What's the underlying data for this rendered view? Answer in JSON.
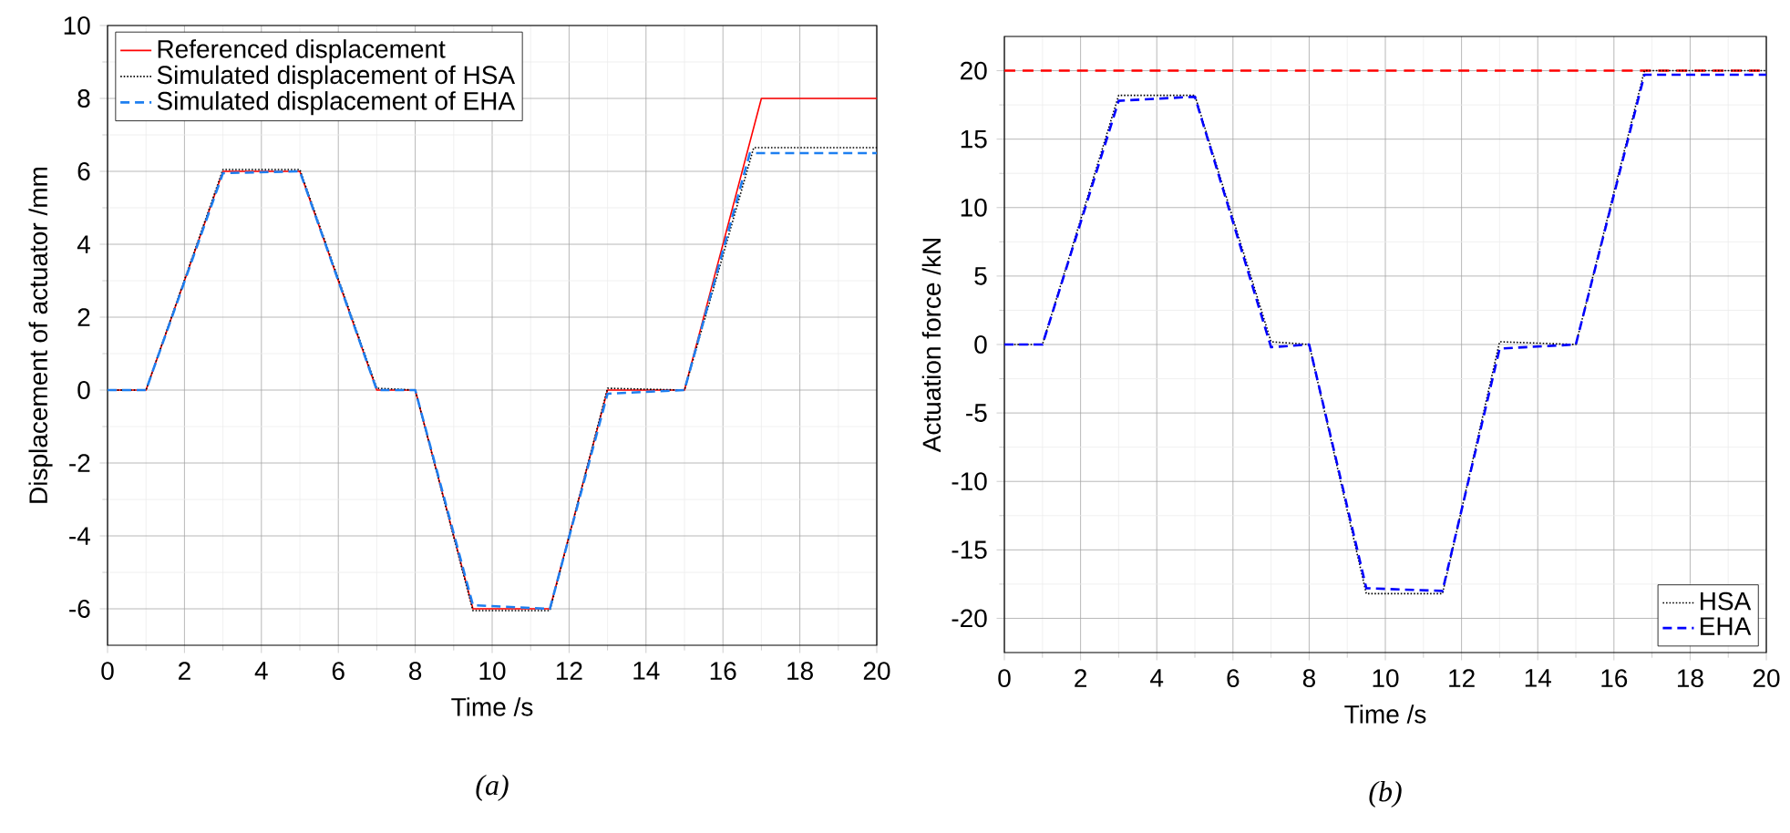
{
  "chart_data": [
    {
      "type": "line",
      "xlabel": "Time /s",
      "ylabel": "Displacement of actuator /mm",
      "xlim": [
        0,
        20
      ],
      "xticks": [
        0,
        2,
        4,
        6,
        8,
        10,
        12,
        14,
        16,
        18,
        20
      ],
      "ylim": [
        -7,
        10
      ],
      "yticks": [
        -6,
        -4,
        -2,
        0,
        2,
        4,
        6,
        8,
        10
      ],
      "grid": true,
      "legend": "top left",
      "annotations": [
        "(a)"
      ],
      "series": [
        {
          "name": "Referenced displacement",
          "color": "#ff0000",
          "line_style": "solid",
          "x": [
            0,
            1,
            3,
            5,
            7,
            8,
            9.5,
            11.5,
            13,
            15,
            17,
            20
          ],
          "values": [
            0,
            0,
            6,
            6,
            0,
            0,
            -6,
            -6,
            0,
            0,
            8,
            8
          ]
        },
        {
          "name": "Simulated displacement of HSA",
          "color": "#000000",
          "line_style": "dotted",
          "x": [
            0,
            1,
            3,
            5,
            7,
            8,
            9.5,
            11.5,
            13,
            15,
            16.8,
            20
          ],
          "values": [
            0,
            0,
            6.05,
            6.05,
            0.05,
            0,
            -6.05,
            -6.05,
            0.05,
            0,
            6.65,
            6.65
          ]
        },
        {
          "name": "Simulated displacement of EHA",
          "color": "#1e7ff0",
          "line_style": "dashed",
          "x": [
            0,
            1,
            3,
            5,
            7,
            8,
            9.5,
            11.5,
            13,
            15,
            16.7,
            20
          ],
          "values": [
            0,
            0,
            5.95,
            6,
            0,
            0,
            -5.9,
            -6,
            -0.1,
            0,
            6.5,
            6.5
          ]
        }
      ]
    },
    {
      "type": "line",
      "xlabel": "Time /s",
      "ylabel": "Actuation force /kN",
      "xlim": [
        0,
        20
      ],
      "xticks": [
        0,
        2,
        4,
        6,
        8,
        10,
        12,
        14,
        16,
        18,
        20
      ],
      "ylim": [
        -22.5,
        22.5
      ],
      "yticks": [
        -20,
        -15,
        -10,
        -5,
        0,
        5,
        10,
        15,
        20
      ],
      "grid": true,
      "legend": "bottom right",
      "annotations": [
        "(b)"
      ],
      "ref_lines": [
        {
          "axis": "y",
          "value": 20,
          "color": "#ff0000",
          "line_style": "dashed"
        }
      ],
      "series": [
        {
          "name": "HSA",
          "color": "#000000",
          "line_style": "dotted",
          "x": [
            0,
            1,
            3,
            5,
            7,
            8,
            9.5,
            11.5,
            13,
            15,
            16.8,
            20
          ],
          "values": [
            0,
            0,
            18.2,
            18.2,
            0.2,
            0,
            -18.2,
            -18.2,
            0.2,
            0,
            20,
            20
          ]
        },
        {
          "name": "EHA",
          "color": "#0000ff",
          "line_style": "dashed",
          "x": [
            0,
            1,
            3,
            5,
            7,
            8,
            9.5,
            11.5,
            13,
            15,
            16.8,
            20
          ],
          "values": [
            0,
            0,
            17.8,
            18.1,
            -0.2,
            0,
            -17.8,
            -18,
            -0.3,
            0,
            19.7,
            19.7
          ]
        }
      ]
    }
  ]
}
